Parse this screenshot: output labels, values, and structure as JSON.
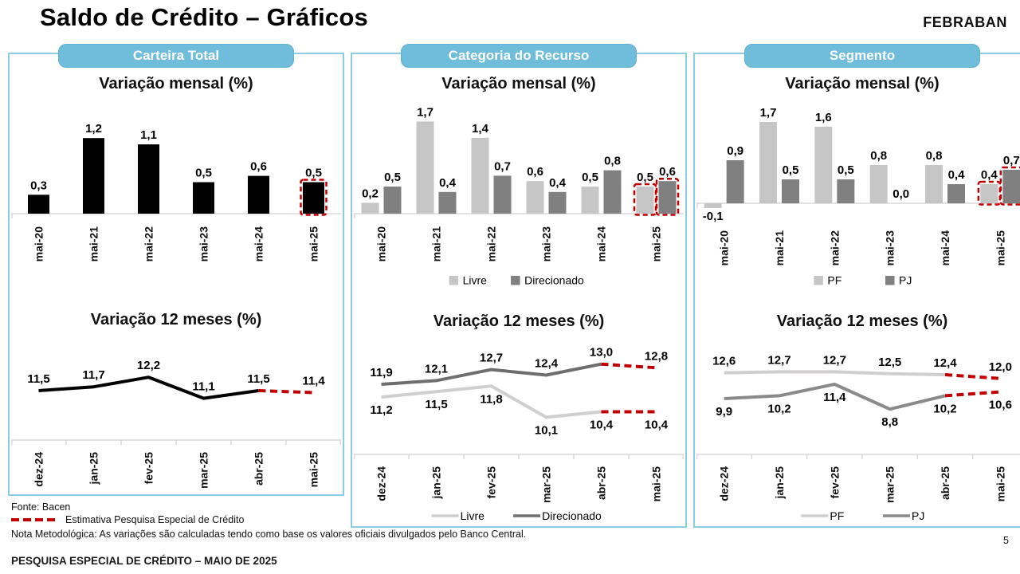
{
  "slide": {
    "title": "Saldo de Crédito – Gráficos",
    "logo": "FEBRABAN",
    "page_number": "5",
    "source": "Fonte: Bacen",
    "estimate_note": "Estimativa Pesquisa Especial de Crédito",
    "method_note": "Nota Metodológica: As variações são calculadas tendo como base os valores oficiais divulgados pelo Banco Central.",
    "footer_bar": "PESQUISA ESPECIAL DE CRÉDITO – MAIO DE 2025"
  },
  "colors": {
    "panel_border_blue": "#8CCBE3",
    "header_pill_blue": "#6FBCDB",
    "estimate_red": "#C00000",
    "bar_black": "#000000",
    "bar_light_gray": "#C6C6C6",
    "bar_dark_gray": "#808080",
    "line_light_gray": "#D0CECE",
    "line_dark_gray": "#6E6E6E",
    "axis_gray": "#D9D9D9"
  },
  "panels": [
    {
      "title": "Carteira Total"
    },
    {
      "title": "Categoria do Recurso"
    },
    {
      "title": "Segmento"
    }
  ],
  "chart_data": [
    {
      "panel": "Carteira Total",
      "type": "bar",
      "title": "Variação mensal (%)",
      "categories": [
        "mai-20",
        "mai-21",
        "mai-22",
        "mai-23",
        "mai-24",
        "mai-25"
      ],
      "series": [
        {
          "name": "Carteira Total",
          "color": "#000000",
          "values": [
            0.3,
            1.2,
            1.1,
            0.5,
            0.6,
            0.5
          ]
        }
      ],
      "estimate_last_category": true,
      "legend": false,
      "ylim": [
        0,
        1.5
      ],
      "grid": false
    },
    {
      "panel": "Carteira Total",
      "type": "line",
      "title": "Variação 12 meses (%)",
      "categories": [
        "dez-24",
        "jan-25",
        "fev-25",
        "mar-25",
        "abr-25",
        "mai-25"
      ],
      "series": [
        {
          "name": "Carteira Total",
          "color": "#000000",
          "values": [
            11.5,
            11.7,
            12.2,
            11.1,
            11.5,
            11.4
          ],
          "label_position": "above"
        }
      ],
      "estimate_last_segment": true,
      "legend": false,
      "ylim": [
        9,
        13.5
      ],
      "grid": false
    },
    {
      "panel": "Categoria do Recurso",
      "type": "bar",
      "title": "Variação mensal (%)",
      "categories": [
        "mai-20",
        "mai-21",
        "mai-22",
        "mai-23",
        "mai-24",
        "mai-25"
      ],
      "series": [
        {
          "name": "Livre",
          "color": "#C6C6C6",
          "values": [
            0.2,
            1.7,
            1.4,
            0.6,
            0.5,
            0.5
          ]
        },
        {
          "name": "Direcionado",
          "color": "#808080",
          "values": [
            0.5,
            0.4,
            0.7,
            0.4,
            0.8,
            0.6
          ]
        }
      ],
      "estimate_last_category": true,
      "legend": true,
      "legend_position": "bottom",
      "ylim": [
        0,
        1.9
      ],
      "grid": false
    },
    {
      "panel": "Categoria do Recurso",
      "type": "line",
      "title": "Variação 12 meses (%)",
      "categories": [
        "dez-24",
        "jan-25",
        "fev-25",
        "mar-25",
        "abr-25",
        "mai-25"
      ],
      "series": [
        {
          "name": "Livre",
          "color": "#D0CECE",
          "values": [
            11.2,
            11.5,
            11.8,
            10.1,
            10.4,
            10.4
          ],
          "label_position": "below"
        },
        {
          "name": "Direcionado",
          "color": "#6E6E6E",
          "values": [
            11.9,
            12.1,
            12.7,
            12.4,
            13.0,
            12.8
          ],
          "label_position": "above"
        }
      ],
      "estimate_last_segment": true,
      "legend": true,
      "legend_position": "bottom",
      "ylim": [
        9.5,
        14
      ],
      "grid": false
    },
    {
      "panel": "Segmento",
      "type": "bar",
      "title": "Variação mensal (%)",
      "categories": [
        "mai-20",
        "mai-21",
        "mai-22",
        "mai-23",
        "mai-24",
        "mai-25"
      ],
      "series": [
        {
          "name": "PF",
          "color": "#C6C6C6",
          "values": [
            -0.1,
            1.7,
            1.6,
            0.8,
            0.8,
            0.4
          ]
        },
        {
          "name": "PJ",
          "color": "#808080",
          "values": [
            0.9,
            0.5,
            0.5,
            0.0,
            0.4,
            0.7
          ]
        }
      ],
      "estimate_last_category": true,
      "legend": true,
      "legend_position": "bottom",
      "ylim": [
        -0.3,
        1.9
      ],
      "grid": false
    },
    {
      "panel": "Segmento",
      "type": "line",
      "title": "Variação 12 meses (%)",
      "categories": [
        "dez-24",
        "jan-25",
        "fev-25",
        "mar-25",
        "abr-25",
        "mai-25"
      ],
      "series": [
        {
          "name": "PF",
          "color": "#D0CECE",
          "values": [
            12.6,
            12.7,
            12.7,
            12.5,
            12.4,
            12.0
          ],
          "label_position": "above"
        },
        {
          "name": "PJ",
          "color": "#8A8A8A",
          "values": [
            9.9,
            10.2,
            11.4,
            8.8,
            10.2,
            10.6
          ],
          "label_position": "below"
        }
      ],
      "estimate_last_segment": true,
      "legend": true,
      "legend_position": "bottom",
      "ylim": [
        7.5,
        14
      ],
      "grid": false
    }
  ]
}
